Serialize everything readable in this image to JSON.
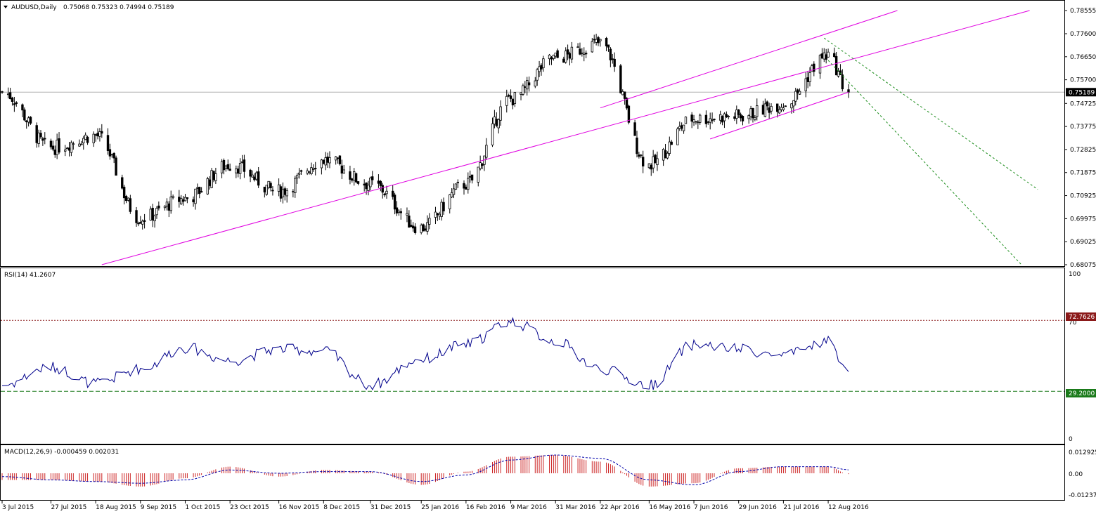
{
  "window": {
    "title": "AUDUSD,Daily",
    "ohlc": "0.75068 0.75323 0.74994 0.75189"
  },
  "price_axis": {
    "labels": [
      "0.78555",
      "0.77600",
      "0.76650",
      "0.75700",
      "0.74725",
      "0.73775",
      "0.72825",
      "0.71875",
      "0.70925",
      "0.69975",
      "0.69025",
      "0.68075"
    ],
    "current_price": "0.75189"
  },
  "rsi": {
    "title": "RSI(14) 41.2607",
    "axis": {
      "top": "100",
      "mid": "70",
      "bottom": "0"
    },
    "upper_level": "72.7626",
    "lower_level": "29.2000"
  },
  "macd": {
    "title": "MACD(12,26,9) -0.000459 0.002031",
    "axis": {
      "top": "0.012925",
      "mid": "0.00",
      "bottom": "-0.012372"
    }
  },
  "time_axis": {
    "labels": [
      "3 Jul 2015",
      "27 Jul 2015",
      "18 Aug 2015",
      "9 Sep 2015",
      "1 Oct 2015",
      "23 Oct 2015",
      "16 Nov 2015",
      "8 Dec 2015",
      "31 Dec 2015",
      "25 Jan 2016",
      "16 Feb 2016",
      "9 Mar 2016",
      "31 Mar 2016",
      "22 Apr 2016",
      "16 May 2016",
      "7 Jun 2016",
      "29 Jun 2016",
      "21 Jul 2016",
      "12 Aug 2016"
    ]
  },
  "colors": {
    "candle": "#000000",
    "trendline": "#e000e0",
    "projection": "#1a8c1a",
    "rsi_line": "#00008b",
    "rsi_upper_label_bg": "#8b1a1a",
    "rsi_lower_label_bg": "#1a7a1a",
    "macd_hist": "#cc2222",
    "macd_signal": "#0000aa"
  },
  "chart_data": {
    "type": "candlestick",
    "symbol": "AUDUSD",
    "timeframe": "Daily",
    "ylim": [
      0.68075,
      0.78555
    ],
    "price_anchors": [
      {
        "date": "3 Jul 2015",
        "close": 0.752
      },
      {
        "date": "27 Jul 2015",
        "close": 0.729
      },
      {
        "date": "18 Aug 2015",
        "close": 0.734
      },
      {
        "date": "9 Sep 2015",
        "close": 0.7
      },
      {
        "date": "1 Oct 2015",
        "close": 0.708
      },
      {
        "date": "23 Oct 2015",
        "close": 0.722
      },
      {
        "date": "16 Nov 2015",
        "close": 0.711
      },
      {
        "date": "8 Dec 2015",
        "close": 0.724
      },
      {
        "date": "31 Dec 2015",
        "close": 0.714
      },
      {
        "date": "25 Jan 2016",
        "close": 0.696
      },
      {
        "date": "16 Feb 2016",
        "close": 0.714
      },
      {
        "date": "9 Mar 2016",
        "close": 0.749
      },
      {
        "date": "31 Mar 2016",
        "close": 0.766
      },
      {
        "date": "22 Apr 2016",
        "close": 0.772
      },
      {
        "date": "16 May 2016",
        "close": 0.722
      },
      {
        "date": "7 Jun 2016",
        "close": 0.741
      },
      {
        "date": "29 Jun 2016",
        "close": 0.742
      },
      {
        "date": "21 Jul 2016",
        "close": 0.747
      },
      {
        "date": "12 Aug 2016",
        "close": 0.767
      },
      {
        "date": "22 Aug 2016",
        "close": 0.75189
      }
    ],
    "rsi_anchors": [
      {
        "date": "3 Jul 2015",
        "value": 33
      },
      {
        "date": "27 Jul 2015",
        "value": 44
      },
      {
        "date": "18 Aug 2015",
        "value": 34
      },
      {
        "date": "9 Sep 2015",
        "value": 43
      },
      {
        "date": "1 Oct 2015",
        "value": 56
      },
      {
        "date": "23 Oct 2015",
        "value": 48
      },
      {
        "date": "16 Nov 2015",
        "value": 55
      },
      {
        "date": "8 Dec 2015",
        "value": 54
      },
      {
        "date": "31 Dec 2015",
        "value": 33
      },
      {
        "date": "25 Jan 2016",
        "value": 49
      },
      {
        "date": "16 Feb 2016",
        "value": 58
      },
      {
        "date": "9 Mar 2016",
        "value": 72
      },
      {
        "date": "31 Mar 2016",
        "value": 60
      },
      {
        "date": "22 Apr 2016",
        "value": 43
      },
      {
        "date": "16 May 2016",
        "value": 33
      },
      {
        "date": "7 Jun 2016",
        "value": 58
      },
      {
        "date": "29 Jun 2016",
        "value": 55
      },
      {
        "date": "21 Jul 2016",
        "value": 51
      },
      {
        "date": "12 Aug 2016",
        "value": 60
      },
      {
        "date": "22 Aug 2016",
        "value": 41.2607
      }
    ],
    "macd_anchors": [
      {
        "date": "3 Jul 2015",
        "hist": -0.004,
        "signal": -0.002
      },
      {
        "date": "27 Jul 2015",
        "hist": -0.004,
        "signal": -0.004
      },
      {
        "date": "18 Aug 2015",
        "hist": -0.005,
        "signal": -0.005
      },
      {
        "date": "9 Sep 2015",
        "hist": -0.008,
        "signal": -0.006
      },
      {
        "date": "1 Oct 2015",
        "hist": -0.003,
        "signal": -0.004
      },
      {
        "date": "23 Oct 2015",
        "hist": 0.004,
        "signal": 0.002
      },
      {
        "date": "16 Nov 2015",
        "hist": -0.002,
        "signal": 0.0
      },
      {
        "date": "8 Dec 2015",
        "hist": 0.002,
        "signal": 0.001
      },
      {
        "date": "31 Dec 2015",
        "hist": 0.001,
        "signal": 0.001
      },
      {
        "date": "25 Jan 2016",
        "hist": -0.007,
        "signal": -0.005
      },
      {
        "date": "16 Feb 2016",
        "hist": 0.001,
        "signal": -0.001
      },
      {
        "date": "9 Mar 2016",
        "hist": 0.01,
        "signal": 0.008
      },
      {
        "date": "31 Mar 2016",
        "hist": 0.011,
        "signal": 0.011
      },
      {
        "date": "22 Apr 2016",
        "hist": 0.007,
        "signal": 0.009
      },
      {
        "date": "16 May 2016",
        "hist": -0.008,
        "signal": -0.004
      },
      {
        "date": "7 Jun 2016",
        "hist": -0.006,
        "signal": -0.007
      },
      {
        "date": "29 Jun 2016",
        "hist": 0.003,
        "signal": 0.001
      },
      {
        "date": "21 Jul 2016",
        "hist": 0.004,
        "signal": 0.004
      },
      {
        "date": "12 Aug 2016",
        "hist": 0.004,
        "signal": 0.004
      },
      {
        "date": "22 Aug 2016",
        "hist": -0.000459,
        "signal": 0.002031
      }
    ],
    "trendlines": [
      {
        "type": "channel-lower",
        "from": {
          "date": "21 Aug 2015",
          "price": 0.68075
        },
        "to": {
          "date": "19 Nov 2016",
          "price": 0.78555
        }
      },
      {
        "type": "channel-upper",
        "from": {
          "date": "22 Apr 2016",
          "price": 0.7454
        },
        "to": {
          "date": "15 Sep 2016",
          "price": 0.78555
        }
      },
      {
        "type": "short-channel-lower",
        "from": {
          "date": "15 Jun 2016",
          "price": 0.7326
        },
        "to": {
          "date": "22 Aug 2016",
          "price": 0.7519
        }
      },
      {
        "type": "projection",
        "from": {
          "date": "10 Aug 2016",
          "price": 0.7742
        },
        "to": {
          "date": "23 Nov 2016",
          "price": 0.7118
        }
      },
      {
        "type": "projection",
        "from": {
          "date": "12 Aug 2016",
          "price": 0.765
        },
        "to": {
          "date": "15 Nov 2016",
          "price": 0.68075
        }
      }
    ]
  }
}
